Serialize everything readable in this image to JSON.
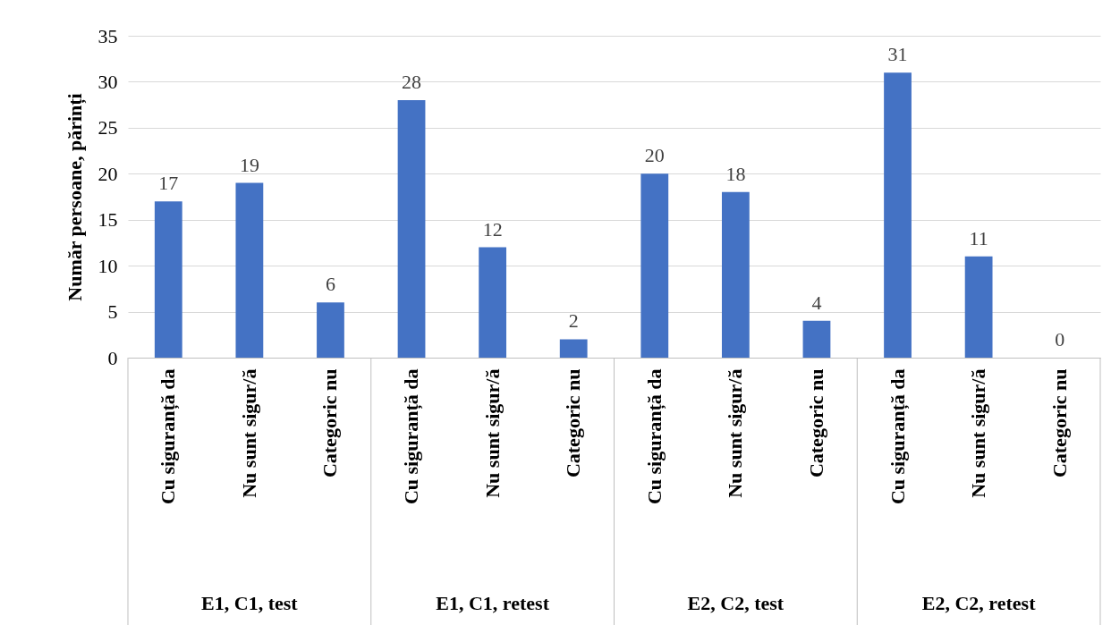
{
  "chart_data": {
    "type": "bar",
    "ylabel": "Număr persoane, părinți",
    "categories": [
      "Cu siguranță da",
      "Nu sunt sigur/ă",
      "Categoric nu",
      "Cu siguranță da",
      "Nu sunt sigur/ă",
      "Categoric nu",
      "Cu siguranță da",
      "Nu sunt sigur/ă",
      "Categoric nu",
      "Cu siguranță da",
      "Nu sunt sigur/ă",
      "Categoric nu"
    ],
    "values": [
      17,
      19,
      6,
      28,
      12,
      2,
      20,
      18,
      4,
      31,
      11,
      0
    ],
    "color": "#4472c4",
    "ylim": [
      0,
      35
    ],
    "yticks": [
      0,
      5,
      10,
      15,
      20,
      25,
      30,
      35
    ],
    "grid": "y",
    "data_labels": true,
    "annotations": [
      "E1, C1, test",
      "E1, C1, retest",
      "E2, C2, test",
      "E2, C2, retest"
    ]
  }
}
